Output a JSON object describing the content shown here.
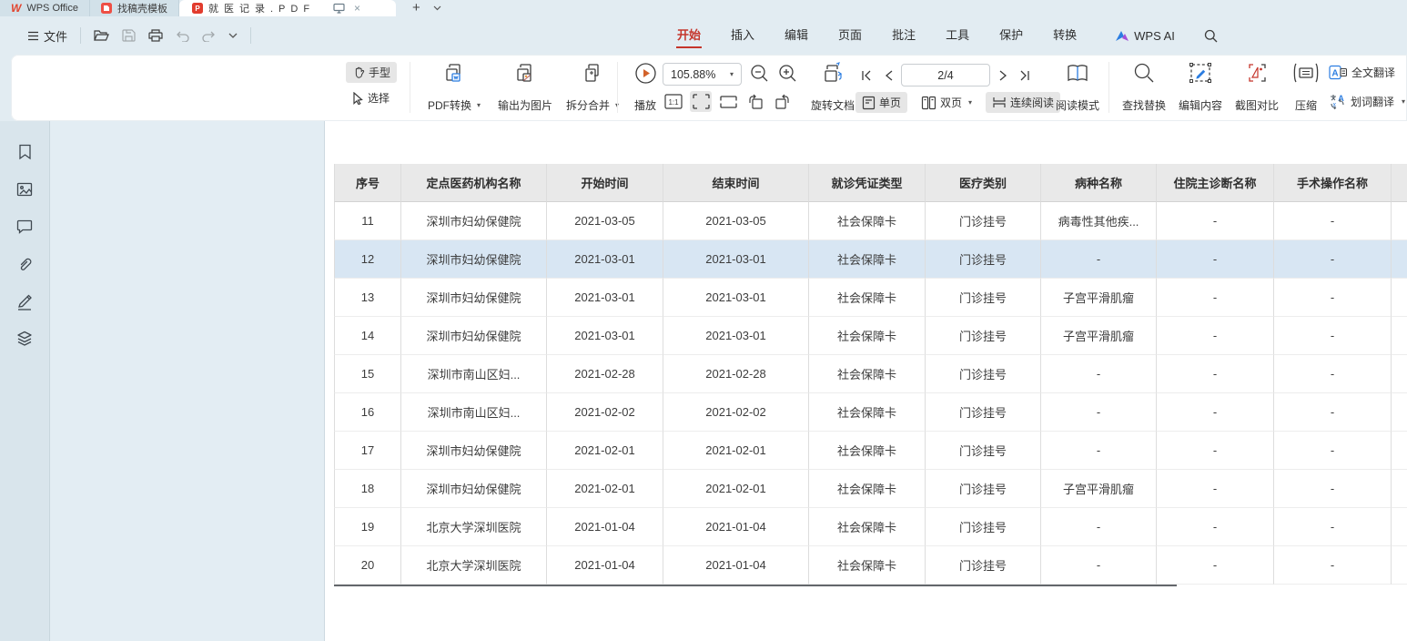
{
  "window": {
    "tabs": [
      {
        "label": "WPS Office"
      },
      {
        "label": "找稿壳模板"
      },
      {
        "label": "就医记录.PDF",
        "active": true
      }
    ],
    "new_tab_glyph": "+",
    "close_glyph": "×"
  },
  "menubar": {
    "file_label": "文件",
    "ribbon_tabs": [
      "开始",
      "插入",
      "编辑",
      "页面",
      "批注",
      "工具",
      "保护",
      "转换"
    ],
    "active_tab": "开始",
    "wps_ai_label": "WPS AI"
  },
  "toolbar": {
    "hand_label": "手型",
    "select_label": "选择",
    "pdf_convert_label": "PDF转换",
    "export_image_label": "输出为图片",
    "split_merge_label": "拆分合并",
    "play_label": "播放",
    "zoom_value": "105.88%",
    "rotate_document_label": "旋转文档",
    "page_indicator": "2/4",
    "single_page_label": "单页",
    "double_page_label": "双页",
    "continuous_read_label": "连续阅读",
    "read_mode_label": "阅读模式",
    "find_replace_label": "查找替换",
    "edit_content_label": "编辑内容",
    "screenshot_compare_label": "截图对比",
    "compress_label": "压缩",
    "full_translation_label": "全文翻译",
    "word_translation_label": "划词翻译"
  },
  "colors": {
    "accent_red": "#c5352b",
    "accent_blue": "#2b7de1",
    "row_highlight": "#d8e6f3",
    "header_gray": "#e9e9e9"
  },
  "document": {
    "table": {
      "headers": [
        "序号",
        "定点医药机构名称",
        "开始时间",
        "结束时间",
        "就诊凭证类型",
        "医疗类别",
        "病种名称",
        "住院主诊断名称",
        "手术操作名称"
      ],
      "highlighted_row": "12",
      "rows": [
        [
          "11",
          "深圳市妇幼保健院",
          "2021-03-05",
          "2021-03-05",
          "社会保障卡",
          "门诊挂号",
          "病毒性其他疾...",
          "-",
          "-"
        ],
        [
          "12",
          "深圳市妇幼保健院",
          "2021-03-01",
          "2021-03-01",
          "社会保障卡",
          "门诊挂号",
          "-",
          "-",
          "-"
        ],
        [
          "13",
          "深圳市妇幼保健院",
          "2021-03-01",
          "2021-03-01",
          "社会保障卡",
          "门诊挂号",
          "子宫平滑肌瘤",
          "-",
          "-"
        ],
        [
          "14",
          "深圳市妇幼保健院",
          "2021-03-01",
          "2021-03-01",
          "社会保障卡",
          "门诊挂号",
          "子宫平滑肌瘤",
          "-",
          "-"
        ],
        [
          "15",
          "深圳市南山区妇...",
          "2021-02-28",
          "2021-02-28",
          "社会保障卡",
          "门诊挂号",
          "-",
          "-",
          "-"
        ],
        [
          "16",
          "深圳市南山区妇...",
          "2021-02-02",
          "2021-02-02",
          "社会保障卡",
          "门诊挂号",
          "-",
          "-",
          "-"
        ],
        [
          "17",
          "深圳市妇幼保健院",
          "2021-02-01",
          "2021-02-01",
          "社会保障卡",
          "门诊挂号",
          "-",
          "-",
          "-"
        ],
        [
          "18",
          "深圳市妇幼保健院",
          "2021-02-01",
          "2021-02-01",
          "社会保障卡",
          "门诊挂号",
          "子宫平滑肌瘤",
          "-",
          "-"
        ],
        [
          "19",
          "北京大学深圳医院",
          "2021-01-04",
          "2021-01-04",
          "社会保障卡",
          "门诊挂号",
          "-",
          "-",
          "-"
        ],
        [
          "20",
          "北京大学深圳医院",
          "2021-01-04",
          "2021-01-04",
          "社会保障卡",
          "门诊挂号",
          "-",
          "-",
          "-"
        ]
      ]
    }
  }
}
